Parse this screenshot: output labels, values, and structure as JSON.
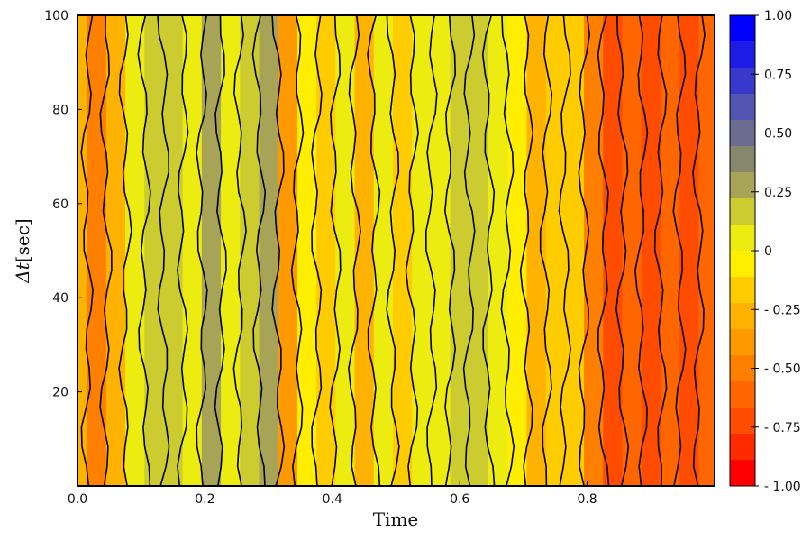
{
  "chart_data": {
    "type": "heatmap",
    "title": "",
    "xlabel": "Time",
    "ylabel_symbol": "Δt",
    "ylabel_unit": "[sec]",
    "xlim": [
      0.0,
      1.0
    ],
    "ylim": [
      0,
      100
    ],
    "x_ticks": [
      "0.0",
      "0.2",
      "0.4",
      "0.6",
      "0.8"
    ],
    "x_tick_values": [
      0.0,
      0.2,
      0.4,
      0.6,
      0.8
    ],
    "y_ticks": [
      "20",
      "40",
      "60",
      "80",
      "100"
    ],
    "y_tick_values": [
      20,
      40,
      60,
      80,
      100
    ],
    "colorbar": {
      "range": [
        -1.0,
        1.0
      ],
      "tick_labels": [
        "1.00",
        "0.75",
        "0.50",
        "0.25",
        "0",
        "- 0.25",
        "- 0.50",
        "- 0.75",
        "- 1.00"
      ],
      "tick_values": [
        1.0,
        0.75,
        0.5,
        0.25,
        0,
        -0.25,
        -0.5,
        -0.75,
        -1.0
      ],
      "levels_top_to_bottom": [
        "#0000ff",
        "#1c1ce6",
        "#3838cc",
        "#5454b2",
        "#6b6b90",
        "#87876e",
        "#a7a458",
        "#cccc30",
        "#ecec10",
        "#ffee00",
        "#ffcc00",
        "#ffb200",
        "#ff9900",
        "#ff7f00",
        "#ff6600",
        "#ff4c00",
        "#ff2a00",
        "#ff0000"
      ]
    },
    "grid": false,
    "columns": [
      {
        "x": 0.0,
        "v": -0.25
      },
      {
        "x": 0.03,
        "v": -0.45
      },
      {
        "x": 0.06,
        "v": -0.25
      },
      {
        "x": 0.09,
        "v": 0.05
      },
      {
        "x": 0.12,
        "v": 0.22
      },
      {
        "x": 0.15,
        "v": 0.2
      },
      {
        "x": 0.18,
        "v": 0.05
      },
      {
        "x": 0.21,
        "v": 0.25
      },
      {
        "x": 0.24,
        "v": 0.05
      },
      {
        "x": 0.27,
        "v": 0.15
      },
      {
        "x": 0.3,
        "v": 0.3
      },
      {
        "x": 0.33,
        "v": -0.35
      },
      {
        "x": 0.36,
        "v": -0.05
      },
      {
        "x": 0.39,
        "v": -0.15
      },
      {
        "x": 0.42,
        "v": 0.05
      },
      {
        "x": 0.45,
        "v": -0.3
      },
      {
        "x": 0.48,
        "v": 0.05
      },
      {
        "x": 0.51,
        "v": -0.2
      },
      {
        "x": 0.54,
        "v": 0.05
      },
      {
        "x": 0.57,
        "v": 0.02
      },
      {
        "x": 0.6,
        "v": 0.15
      },
      {
        "x": 0.63,
        "v": 0.2
      },
      {
        "x": 0.66,
        "v": 0.05
      },
      {
        "x": 0.69,
        "v": -0.05
      },
      {
        "x": 0.72,
        "v": -0.25
      },
      {
        "x": 0.75,
        "v": -0.15
      },
      {
        "x": 0.78,
        "v": -0.2
      },
      {
        "x": 0.81,
        "v": -0.55
      },
      {
        "x": 0.84,
        "v": -0.7
      },
      {
        "x": 0.87,
        "v": -0.6
      },
      {
        "x": 0.9,
        "v": -0.75
      },
      {
        "x": 0.93,
        "v": -0.65
      },
      {
        "x": 0.96,
        "v": -0.7
      },
      {
        "x": 0.99,
        "v": -0.6
      }
    ]
  }
}
